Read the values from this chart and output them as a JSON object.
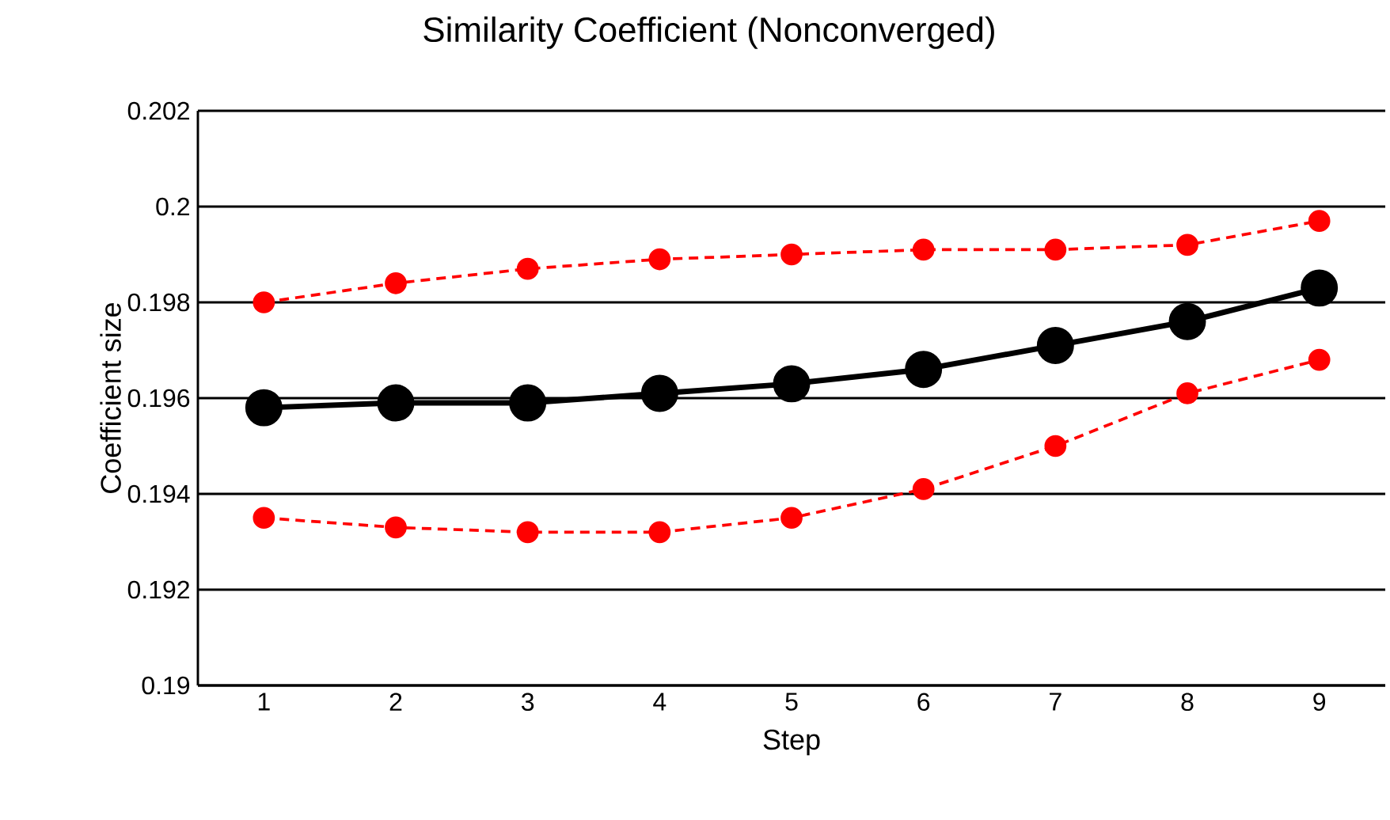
{
  "chart_data": {
    "type": "line",
    "title": "Similarity Coefficient (Nonconverged)",
    "xlabel": "Step",
    "ylabel": "Coefficient size",
    "categories": [
      "1",
      "2",
      "3",
      "4",
      "5",
      "6",
      "7",
      "8",
      "9"
    ],
    "series": [
      {
        "color": "#000000",
        "line_style": "solid",
        "values": [
          0.1958,
          0.1959,
          0.1959,
          0.1961,
          0.1963,
          0.1966,
          0.1971,
          0.1976,
          0.1983
        ]
      },
      {
        "color": "#ff0000",
        "line_style": "dashed",
        "values": [
          0.198,
          0.1984,
          0.1987,
          0.1989,
          0.199,
          0.1991,
          0.1991,
          0.1992,
          0.1997
        ]
      },
      {
        "color": "#ff0000",
        "line_style": "dashed",
        "values": [
          0.1935,
          0.1933,
          0.1932,
          0.1932,
          0.1935,
          0.1941,
          0.195,
          0.1961,
          0.1968
        ]
      }
    ],
    "ylim": [
      0.19,
      0.202
    ],
    "yticks": [
      0.19,
      0.192,
      0.194,
      0.196,
      0.198,
      0.2,
      0.202
    ],
    "grid": "y",
    "marker": "circle"
  }
}
